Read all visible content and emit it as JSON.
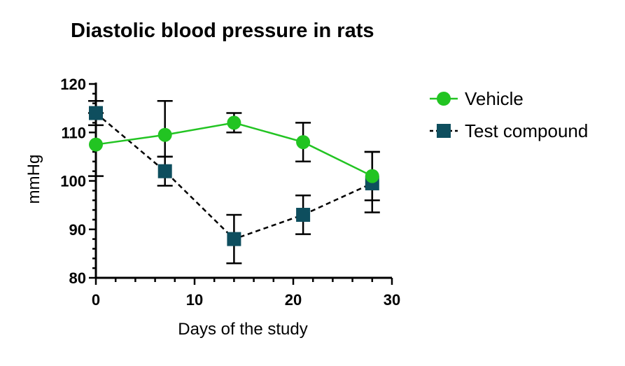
{
  "chart_data": {
    "type": "line",
    "title": "Diastolic blood pressure in rats",
    "xlabel": "Days of the study",
    "ylabel": "mmHg",
    "xlim": [
      0,
      30
    ],
    "ylim": [
      80,
      120
    ],
    "xticks": [
      0,
      10,
      20,
      30
    ],
    "yticks": [
      80,
      90,
      100,
      110,
      120
    ],
    "grid": false,
    "legend_position": "right",
    "series": [
      {
        "name": "Vehicle",
        "marker": "circle",
        "line_style": "solid",
        "color": "#22c422",
        "x": [
          0,
          7,
          14,
          21,
          28
        ],
        "y": [
          107.5,
          109.5,
          112,
          108,
          101
        ],
        "error": [
          [
            6.5,
            6.5
          ],
          [
            4.5,
            7
          ],
          [
            2,
            2
          ],
          [
            4,
            4
          ],
          [
            5,
            5
          ]
        ]
      },
      {
        "name": "Test compound",
        "marker": "square",
        "line_style": "dashed",
        "color": "#0e4e5e",
        "x": [
          0,
          7,
          14,
          21,
          28
        ],
        "y": [
          114,
          102,
          88,
          93,
          99.5
        ],
        "error": [
          [
            2.5,
            2.5
          ],
          [
            3,
            3
          ],
          [
            5,
            5
          ],
          [
            4,
            4
          ],
          [
            6,
            6.5
          ]
        ]
      }
    ]
  }
}
